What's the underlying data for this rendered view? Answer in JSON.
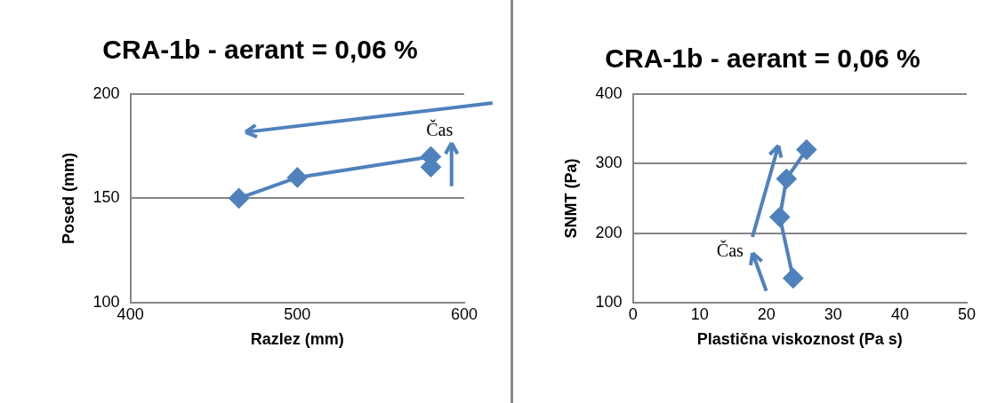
{
  "chart_data": [
    {
      "type": "line",
      "title": "CRA-1b - aerant = 0,06 %",
      "xlabel": "Razlez (mm)",
      "ylabel": "Posed (mm)",
      "x": [
        465,
        500,
        580,
        580
      ],
      "values": [
        150,
        160,
        170,
        165
      ],
      "color": "#4f81bd",
      "xlim": [
        400,
        600
      ],
      "xticks": [
        400,
        500,
        600
      ],
      "ylim": [
        100,
        200
      ],
      "yticks": [
        100,
        150,
        200
      ],
      "grid": "y",
      "marker": "diamond",
      "legend": false,
      "annotations": [
        "Čas"
      ]
    },
    {
      "type": "line",
      "title": "CRA-1b - aerant = 0,06 %",
      "xlabel": "Plastična viskoznost (Pa s)",
      "ylabel": "SNMT (Pa)",
      "x": [
        24,
        22,
        23,
        26
      ],
      "values": [
        135,
        223,
        278,
        320
      ],
      "color": "#4f81bd",
      "xlim": [
        0,
        50
      ],
      "xticks": [
        0,
        10,
        20,
        30,
        40,
        50
      ],
      "ylim": [
        100,
        400
      ],
      "yticks": [
        100,
        200,
        300,
        400
      ],
      "grid": "y",
      "marker": "diamond",
      "legend": false,
      "annotations": [
        "Čas"
      ]
    }
  ]
}
